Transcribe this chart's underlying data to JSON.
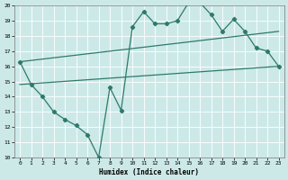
{
  "xlabel": "Humidex (Indice chaleur)",
  "xlim": [
    -0.5,
    23.5
  ],
  "ylim": [
    10,
    20
  ],
  "yticks": [
    10,
    11,
    12,
    13,
    14,
    15,
    16,
    17,
    18,
    19,
    20
  ],
  "xticks": [
    0,
    1,
    2,
    3,
    4,
    5,
    6,
    7,
    8,
    9,
    10,
    11,
    12,
    13,
    14,
    15,
    16,
    17,
    18,
    19,
    20,
    21,
    22,
    23
  ],
  "bg_color": "#cce9e8",
  "line_color": "#2d7a6b",
  "grid_color": "#ffffff",
  "line1_x": [
    0,
    1,
    2,
    3,
    4,
    5,
    6,
    7,
    8,
    9,
    10,
    11,
    12,
    13,
    14,
    15,
    16,
    17,
    18,
    19,
    20,
    21,
    22,
    23
  ],
  "line1_y": [
    16.3,
    14.8,
    14.0,
    13.0,
    12.5,
    12.1,
    11.5,
    10.0,
    14.6,
    13.1,
    18.6,
    19.6,
    18.8,
    18.8,
    19.0,
    20.2,
    20.2,
    19.4,
    18.3,
    19.1,
    18.3,
    17.2,
    17.0,
    16.0
  ],
  "line2_x": [
    0,
    23
  ],
  "line2_y": [
    16.3,
    18.3
  ],
  "line3_x": [
    0,
    23
  ],
  "line3_y": [
    14.8,
    16.0
  ]
}
